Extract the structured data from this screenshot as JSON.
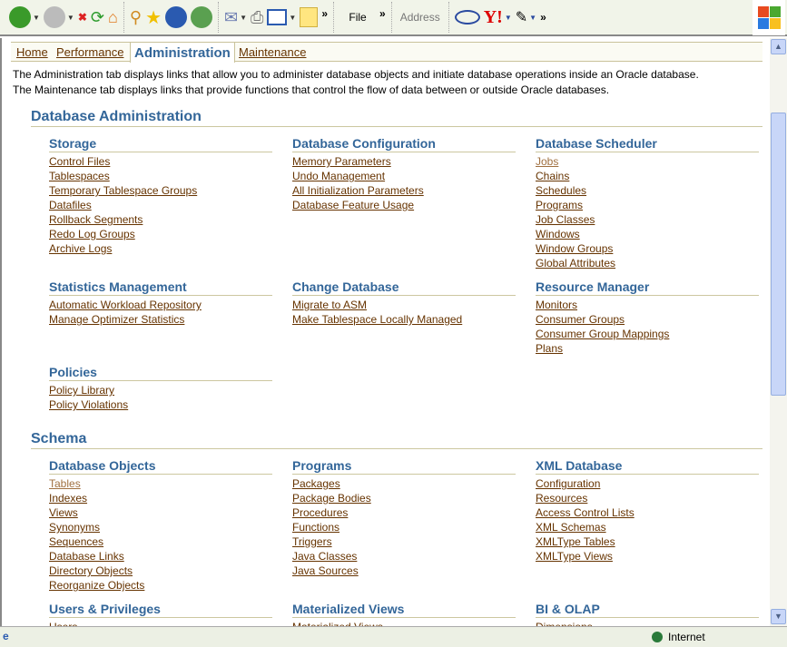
{
  "toolbar": {
    "file_label": "File",
    "address_label": "Address",
    "more": "»"
  },
  "tabs": [
    {
      "label": "Home"
    },
    {
      "label": "Performance"
    },
    {
      "label": "Administration",
      "active": true
    },
    {
      "label": "Maintenance"
    }
  ],
  "description": [
    "The Administration tab displays links that allow you to administer database objects and initiate database operations inside an Oracle database.",
    "The Maintenance tab displays links that provide functions that control the flow of data between or outside Oracle databases."
  ],
  "sections": [
    {
      "title": "Database Administration",
      "groups": [
        {
          "title": "Storage",
          "links": [
            "Control Files",
            "Tablespaces",
            "Temporary Tablespace Groups",
            "Datafiles",
            "Rollback Segments",
            "Redo Log Groups",
            "Archive Logs"
          ]
        },
        {
          "title": "Database Configuration",
          "links": [
            "Memory Parameters",
            "Undo Management",
            "All Initialization Parameters",
            "Database Feature Usage"
          ]
        },
        {
          "title": "Database Scheduler",
          "links": [
            "Jobs",
            "Chains",
            "Schedules",
            "Programs",
            "Job Classes",
            "Windows",
            "Window Groups",
            "Global Attributes"
          ]
        },
        {
          "title": "Statistics Management",
          "links": [
            "Automatic Workload Repository",
            "Manage Optimizer Statistics"
          ]
        },
        {
          "title": "Change Database",
          "links": [
            "Migrate to ASM",
            "Make Tablespace Locally Managed"
          ]
        },
        {
          "title": "Resource Manager",
          "links": [
            "Monitors",
            "Consumer Groups",
            "Consumer Group Mappings",
            "Plans"
          ]
        },
        {
          "title": "Policies",
          "links": [
            "Policy Library",
            "Policy Violations"
          ]
        }
      ]
    },
    {
      "title": "Schema",
      "groups": [
        {
          "title": "Database Objects",
          "links": [
            "Tables",
            "Indexes",
            "Views",
            "Synonyms",
            "Sequences",
            "Database Links",
            "Directory Objects",
            "Reorganize Objects"
          ]
        },
        {
          "title": "Programs",
          "links": [
            "Packages",
            "Package Bodies",
            "Procedures",
            "Functions",
            "Triggers",
            "Java Classes",
            "Java Sources"
          ]
        },
        {
          "title": "XML Database",
          "links": [
            "Configuration",
            "Resources",
            "Access Control Lists",
            "XML Schemas",
            "XMLType Tables",
            "XMLType Views"
          ]
        },
        {
          "title": "Users & Privileges",
          "links": [
            "Users"
          ]
        },
        {
          "title": "Materialized Views",
          "links": [
            "Materialized Views"
          ]
        },
        {
          "title": "BI & OLAP",
          "links": [
            "Dimensions"
          ]
        }
      ]
    }
  ],
  "status": {
    "zone": "Internet"
  }
}
